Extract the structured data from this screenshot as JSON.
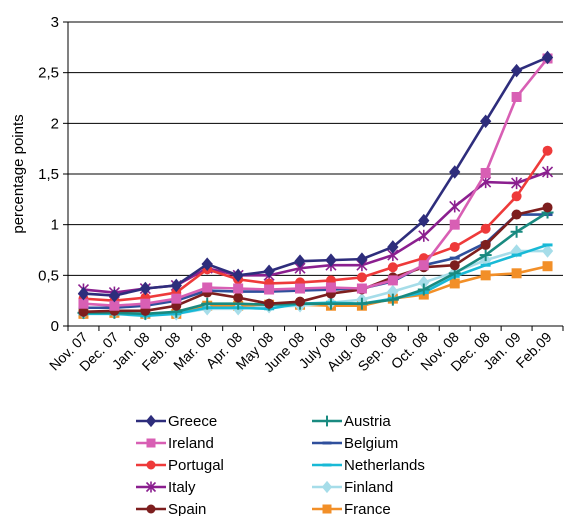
{
  "chart_data": {
    "type": "line",
    "title": "",
    "xlabel": "",
    "ylabel": "percentage points",
    "ylim": [
      0,
      3
    ],
    "yticks": [
      0,
      0.5,
      1,
      1.5,
      2,
      2.5,
      3
    ],
    "ytick_labels": [
      "0",
      "0,5",
      "1",
      "1,5",
      "2",
      "2,5",
      "3"
    ],
    "grid": "horizontal",
    "legend_position": "bottom",
    "categories": [
      "Nov. 07",
      "Dec. 07",
      "Jan. 08",
      "Feb. 08",
      "Mar. 08",
      "Apr. 08",
      "May 08",
      "June 08",
      "July 08",
      "Aug. 08",
      "Sep. 08",
      "Oct. 08",
      "Nov. 08",
      "Dec. 08",
      "Jan. 09",
      "Feb.09"
    ],
    "series": [
      {
        "name": "Greece",
        "color": "#2e2d7c",
        "marker": "diamond",
        "values": [
          0.32,
          0.3,
          0.37,
          0.4,
          0.61,
          0.5,
          0.54,
          0.64,
          0.65,
          0.66,
          0.78,
          1.04,
          1.52,
          2.02,
          2.52,
          2.65
        ]
      },
      {
        "name": "Ireland",
        "color": "#d85fb4",
        "marker": "square",
        "values": [
          0.22,
          0.2,
          0.22,
          0.27,
          0.38,
          0.37,
          0.36,
          0.37,
          0.38,
          0.37,
          0.45,
          0.6,
          1.0,
          1.51,
          2.26,
          2.64
        ]
      },
      {
        "name": "Portugal",
        "color": "#ee3a3a",
        "marker": "circle",
        "values": [
          0.27,
          0.25,
          0.28,
          0.33,
          0.56,
          0.46,
          0.42,
          0.43,
          0.45,
          0.48,
          0.58,
          0.67,
          0.78,
          0.96,
          1.28,
          1.73
        ]
      },
      {
        "name": "Italy",
        "color": "#8b1f8f",
        "marker": "star",
        "values": [
          0.36,
          0.33,
          0.37,
          0.4,
          0.57,
          0.5,
          0.5,
          0.57,
          0.6,
          0.6,
          0.7,
          0.89,
          1.18,
          1.42,
          1.41,
          1.52
        ]
      },
      {
        "name": "Spain",
        "color": "#7d1e1e",
        "marker": "circle",
        "values": [
          0.14,
          0.15,
          0.15,
          0.2,
          0.33,
          0.28,
          0.22,
          0.24,
          0.32,
          0.36,
          0.48,
          0.58,
          0.6,
          0.8,
          1.1,
          1.17
        ]
      },
      {
        "name": "Austria",
        "color": "#198a80",
        "marker": "plus",
        "values": [
          0.13,
          0.13,
          0.12,
          0.14,
          0.22,
          0.22,
          0.21,
          0.22,
          0.22,
          0.22,
          0.26,
          0.36,
          0.52,
          0.7,
          0.93,
          1.12
        ]
      },
      {
        "name": "Belgium",
        "color": "#2f4f9c",
        "marker": "dash",
        "values": [
          0.18,
          0.18,
          0.2,
          0.25,
          0.35,
          0.34,
          0.34,
          0.35,
          0.36,
          0.37,
          0.44,
          0.6,
          0.67,
          0.82,
          1.1,
          1.1
        ]
      },
      {
        "name": "Netherlands",
        "color": "#18b9d6",
        "marker": "dash",
        "values": [
          0.12,
          0.12,
          0.1,
          0.12,
          0.18,
          0.18,
          0.17,
          0.22,
          0.23,
          0.22,
          0.27,
          0.33,
          0.49,
          0.6,
          0.7,
          0.8
        ]
      },
      {
        "name": "Finland",
        "color": "#a6dde9",
        "marker": "diamond",
        "values": [
          0.13,
          0.14,
          0.12,
          0.12,
          0.17,
          0.17,
          0.19,
          0.2,
          0.23,
          0.26,
          0.34,
          0.43,
          0.53,
          0.65,
          0.74,
          0.74
        ]
      },
      {
        "name": "France",
        "color": "#f28f28",
        "marker": "square",
        "values": [
          0.12,
          0.13,
          0.12,
          0.12,
          0.2,
          0.2,
          0.21,
          0.21,
          0.2,
          0.2,
          0.27,
          0.31,
          0.42,
          0.5,
          0.52,
          0.59
        ]
      }
    ]
  }
}
